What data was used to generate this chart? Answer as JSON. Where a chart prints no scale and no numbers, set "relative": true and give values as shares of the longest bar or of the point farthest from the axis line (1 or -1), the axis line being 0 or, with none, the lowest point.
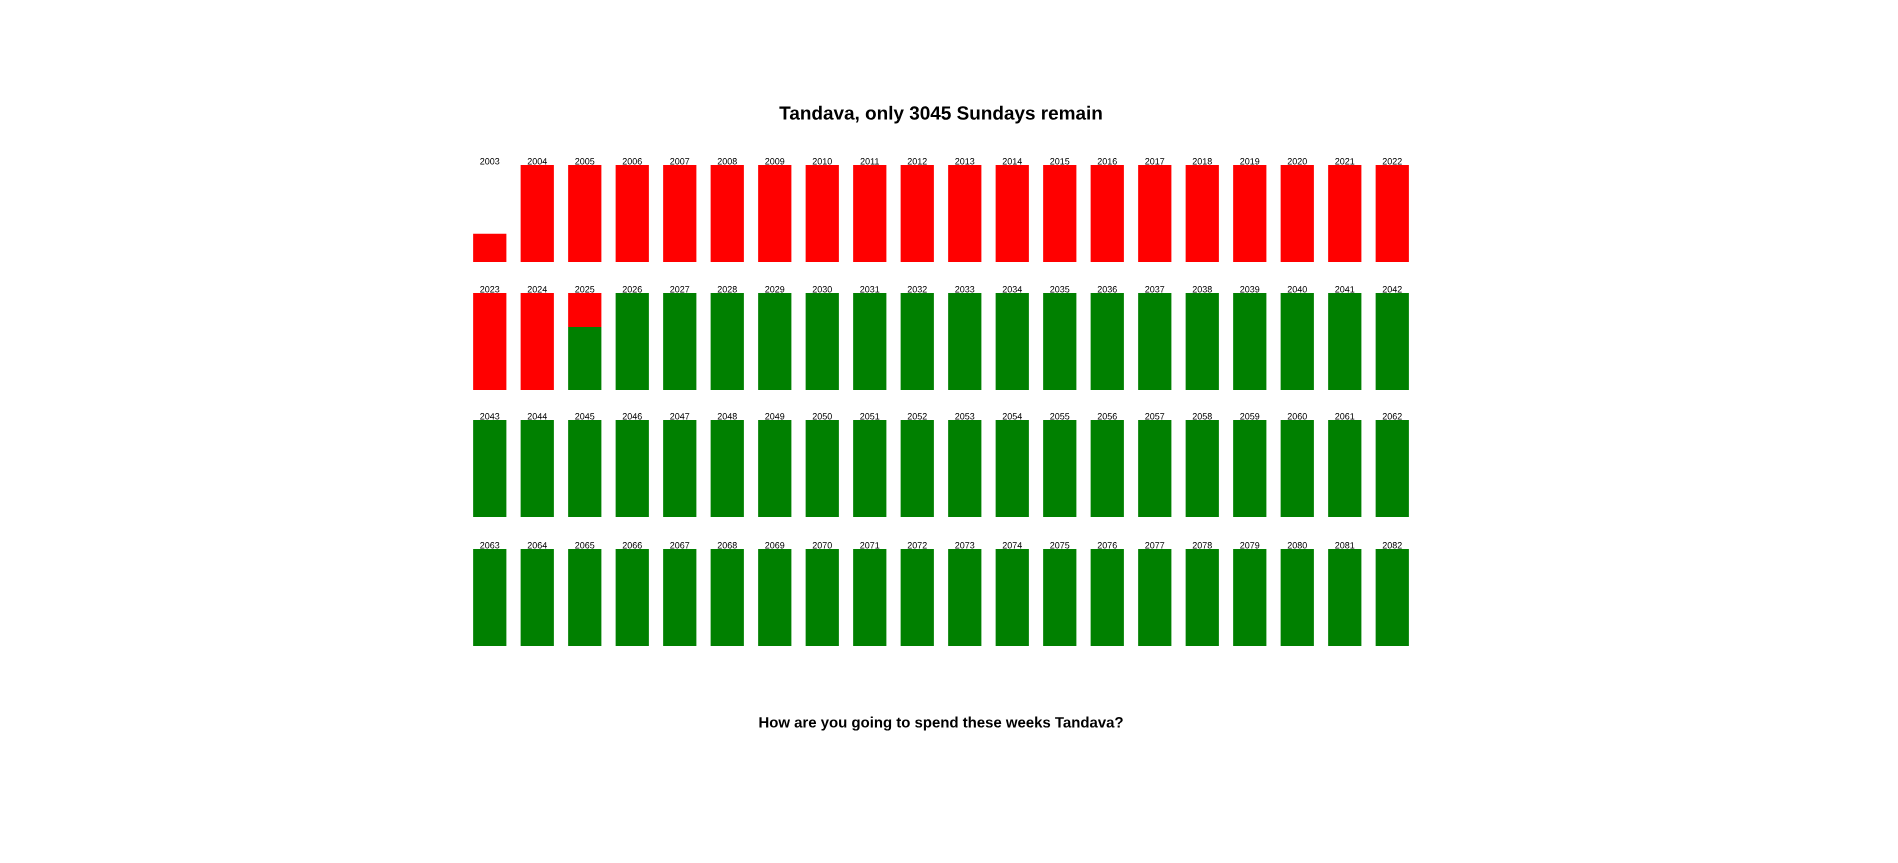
{
  "chart_data": [
    {
      "type": "bar",
      "title": "Tandava, only 3045 Sundays remain",
      "stacked": true,
      "relative": true,
      "categories": [
        "2003",
        "2004",
        "2005",
        "2006",
        "2007",
        "2008",
        "2009",
        "2010",
        "2011",
        "2012",
        "2013",
        "2014",
        "2015",
        "2016",
        "2017",
        "2018",
        "2019",
        "2020",
        "2021",
        "2022"
      ],
      "series": [
        {
          "color": "#ff0000",
          "values": [
            0.29,
            1,
            1,
            1,
            1,
            1,
            1,
            1,
            1,
            1,
            1,
            1,
            1,
            1,
            1,
            1,
            1,
            1,
            1,
            1
          ]
        }
      ]
    },
    {
      "type": "bar",
      "stacked": true,
      "relative": true,
      "categories": [
        "2023",
        "2024",
        "2025",
        "2026",
        "2027",
        "2028",
        "2029",
        "2030",
        "2031",
        "2032",
        "2033",
        "2034",
        "2035",
        "2036",
        "2037",
        "2038",
        "2039",
        "2040",
        "2041",
        "2042"
      ],
      "series": [
        {
          "color": "#008000",
          "values": [
            0,
            0,
            0.65,
            1,
            1,
            1,
            1,
            1,
            1,
            1,
            1,
            1,
            1,
            1,
            1,
            1,
            1,
            1,
            1,
            1
          ]
        },
        {
          "color": "#ff0000",
          "values": [
            1,
            1,
            0.35,
            0,
            0,
            0,
            0,
            0,
            0,
            0,
            0,
            0,
            0,
            0,
            0,
            0,
            0,
            0,
            0,
            0
          ]
        }
      ]
    },
    {
      "type": "bar",
      "stacked": true,
      "relative": true,
      "categories": [
        "2043",
        "2044",
        "2045",
        "2046",
        "2047",
        "2048",
        "2049",
        "2050",
        "2051",
        "2052",
        "2053",
        "2054",
        "2055",
        "2056",
        "2057",
        "2058",
        "2059",
        "2060",
        "2061",
        "2062"
      ],
      "series": [
        {
          "color": "#008000",
          "values": [
            1,
            1,
            1,
            1,
            1,
            1,
            1,
            1,
            1,
            1,
            1,
            1,
            1,
            1,
            1,
            1,
            1,
            1,
            1,
            1
          ]
        }
      ]
    },
    {
      "type": "bar",
      "stacked": true,
      "relative": true,
      "categories": [
        "2063",
        "2064",
        "2065",
        "2066",
        "2067",
        "2068",
        "2069",
        "2070",
        "2071",
        "2072",
        "2073",
        "2074",
        "2075",
        "2076",
        "2077",
        "2078",
        "2079",
        "2080",
        "2081",
        "2082"
      ],
      "series": [
        {
          "color": "#008000",
          "values": [
            1,
            1,
            1,
            1,
            1,
            1,
            1,
            1,
            1,
            1,
            1,
            1,
            1,
            1,
            1,
            1,
            1,
            1,
            1,
            1
          ]
        }
      ],
      "annotations": [
        "How are you going to spend these weeks Tandava?"
      ]
    }
  ]
}
